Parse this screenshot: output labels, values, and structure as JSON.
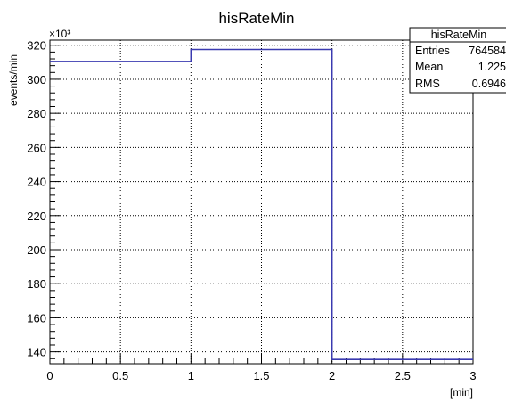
{
  "chart_data": {
    "type": "line",
    "title": "hisRateMin",
    "xlabel": "[min]",
    "ylabel": "events/min",
    "y_multiplier": "×10³",
    "xlim": [
      0,
      3
    ],
    "ylim": [
      133,
      323
    ],
    "x_ticks": [
      "0",
      "0.5",
      "1",
      "1.5",
      "2",
      "2.5",
      "3"
    ],
    "x_tick_values": [
      0,
      0.5,
      1,
      1.5,
      2,
      2.5,
      3
    ],
    "y_ticks": [
      "140",
      "160",
      "180",
      "200",
      "220",
      "240",
      "260",
      "280",
      "300",
      "320"
    ],
    "y_tick_values": [
      140,
      160,
      180,
      200,
      220,
      240,
      260,
      280,
      300,
      320
    ],
    "grid": true,
    "histogram_style": "step",
    "series": [
      {
        "bin_edges": [
          0,
          1,
          2,
          3
        ],
        "values": [
          310.5,
          317.5,
          135.5
        ]
      }
    ],
    "stats_box": {
      "title": "hisRateMin",
      "rows": [
        {
          "label": "Entries",
          "value": "764584"
        },
        {
          "label": "Mean",
          "value": "1.225"
        },
        {
          "label": "RMS",
          "value": "0.6946"
        }
      ]
    },
    "colors": {
      "line": "#3a3ab0",
      "axis": "#000000",
      "grid": "#000000"
    }
  }
}
